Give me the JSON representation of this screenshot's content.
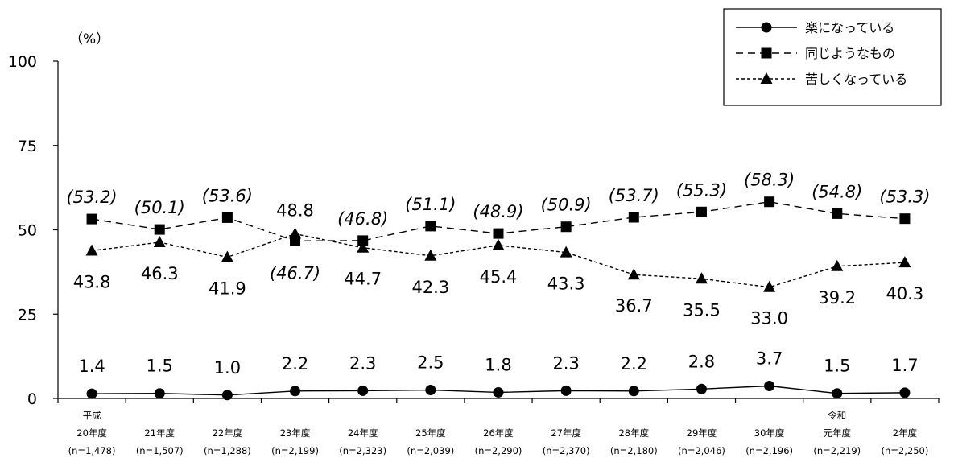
{
  "chart_data": {
    "type": "line",
    "unit_label": "（%）",
    "ylim": [
      0,
      100
    ],
    "yticks": [
      "0",
      "25",
      "50",
      "75",
      "100"
    ],
    "grid": false,
    "legend_position": "top-right",
    "categories": [
      {
        "line1": "平成",
        "line2": "20年度",
        "line3": "(n=1,478)"
      },
      {
        "line1": "",
        "line2": "21年度",
        "line3": "(n=1,507)"
      },
      {
        "line1": "",
        "line2": "22年度",
        "line3": "(n=1,288)"
      },
      {
        "line1": "",
        "line2": "23年度",
        "line3": "(n=2,199)"
      },
      {
        "line1": "",
        "line2": "24年度",
        "line3": "(n=2,323)"
      },
      {
        "line1": "",
        "line2": "25年度",
        "line3": "(n=2,039)"
      },
      {
        "line1": "",
        "line2": "26年度",
        "line3": "(n=2,290)"
      },
      {
        "line1": "",
        "line2": "27年度",
        "line3": "(n=2,370)"
      },
      {
        "line1": "",
        "line2": "28年度",
        "line3": "(n=2,180)"
      },
      {
        "line1": "",
        "line2": "29年度",
        "line3": "(n=2,046)"
      },
      {
        "line1": "",
        "line2": "30年度",
        "line3": "(n=2,196)"
      },
      {
        "line1": "令和",
        "line2": "元年度",
        "line3": "(n=2,219)"
      },
      {
        "line1": "",
        "line2": "2年度",
        "line3": "(n=2,250)"
      }
    ],
    "series": [
      {
        "name": "楽になっている",
        "marker": "circle",
        "dash": "solid",
        "values": [
          1.4,
          1.5,
          1.0,
          2.2,
          2.3,
          2.5,
          1.8,
          2.3,
          2.2,
          2.8,
          3.7,
          1.5,
          1.7
        ],
        "labels": [
          "1.4",
          "1.5",
          "1.0",
          "2.2",
          "2.3",
          "2.5",
          "1.8",
          "2.3",
          "2.2",
          "2.8",
          "3.7",
          "1.5",
          "1.7"
        ]
      },
      {
        "name": "同じようなもの",
        "marker": "square",
        "dash": "dashed",
        "values": [
          53.2,
          50.1,
          53.6,
          46.7,
          46.8,
          51.1,
          48.9,
          50.9,
          53.7,
          55.3,
          58.3,
          54.8,
          53.3
        ],
        "labels": [
          "(53.2)",
          "(50.1)",
          "(53.6)",
          "(46.7)",
          "(46.8)",
          "(51.1)",
          "(48.9)",
          "(50.9)",
          "(53.7)",
          "(55.3)",
          "(58.3)",
          "(54.8)",
          "(53.3)"
        ]
      },
      {
        "name": "苦しくなっている",
        "marker": "triangle",
        "dash": "dotted",
        "values": [
          43.8,
          46.3,
          41.9,
          48.8,
          44.7,
          42.3,
          45.4,
          43.3,
          36.7,
          35.5,
          33.0,
          39.2,
          40.3
        ],
        "labels": [
          "43.8",
          "46.3",
          "41.9",
          "48.8",
          "44.7",
          "42.3",
          "45.4",
          "43.3",
          "36.7",
          "35.5",
          "33.0",
          "39.2",
          "40.3"
        ]
      }
    ]
  }
}
